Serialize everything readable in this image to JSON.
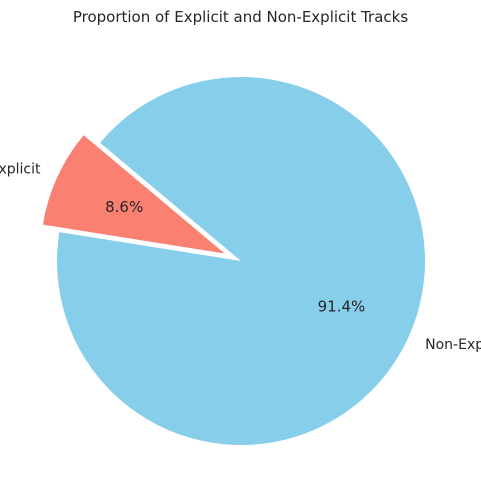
{
  "chart_data": {
    "type": "pie",
    "title": "Proportion of Explicit and Non-Explicit Tracks",
    "slices": [
      {
        "label": "Explicit",
        "value": 8.6,
        "pct_label": "8.6%",
        "color": "#fa8072",
        "exploded": true
      },
      {
        "label": "Non-Explicit",
        "value": 91.4,
        "pct_label": "91.4%",
        "color": "#87ceeb",
        "exploded": false
      }
    ],
    "start_angle_deg": 140,
    "direction": "counterclockwise",
    "legend": "none"
  }
}
